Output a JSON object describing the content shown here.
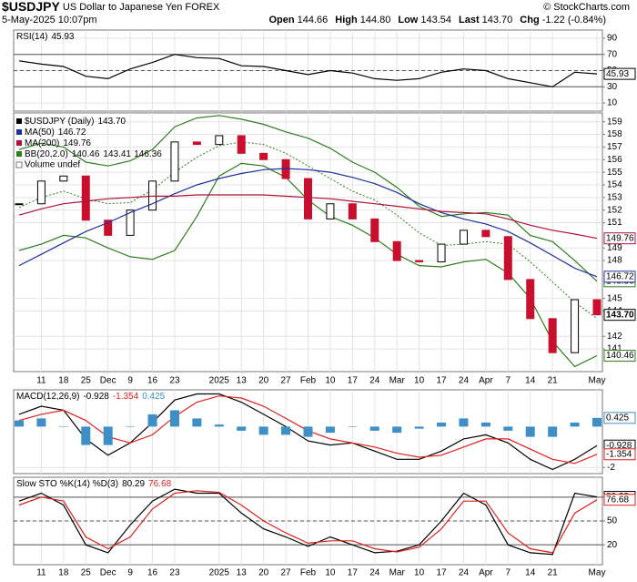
{
  "header": {
    "symbol": "$USDJPY",
    "name": "US Dollar to Japanese Yen",
    "exchange": "FOREX",
    "date": "5-May-2025 10:07pm",
    "quote": [
      {
        "label": "Open",
        "value": "144.66"
      },
      {
        "label": "High",
        "value": "144.80"
      },
      {
        "label": "Low",
        "value": "143.54"
      },
      {
        "label": "Last",
        "value": "143.70"
      },
      {
        "label": "Chg",
        "value": "-1.22 (-0.84%)"
      }
    ],
    "credit": "© StockCharts.com"
  },
  "chart_data": [
    {
      "type": "line",
      "label": "RSI(14)",
      "ylim": [
        0,
        100
      ],
      "yticks": [
        10,
        30,
        50,
        70,
        90
      ],
      "reference_lines": [
        70,
        50,
        30
      ],
      "series": [
        {
          "color": "#000000",
          "legend_value": 45.93,
          "values": [
            62,
            58,
            55,
            43,
            40,
            52,
            60,
            70,
            66,
            65,
            56,
            55,
            50,
            45,
            50,
            47,
            40,
            38,
            40,
            48,
            52,
            50,
            40,
            35,
            30,
            48,
            45.93
          ]
        }
      ]
    },
    {
      "type": "candlestick",
      "ylim": [
        139.2,
        159.7
      ],
      "yticks": [
        141,
        142,
        144,
        145,
        148,
        149,
        151,
        152,
        153,
        154,
        155,
        156,
        157,
        158,
        159
      ],
      "categories": [
        null,
        "11",
        "18",
        "25",
        "Dec",
        "9",
        "16",
        "23",
        null,
        "2025",
        "13",
        "20",
        "27",
        "Feb",
        "10",
        "17",
        "24",
        "Mar",
        "10",
        "17",
        "24",
        "Apr",
        "7",
        "14",
        "21",
        null,
        "May"
      ],
      "series": [
        {
          "name": "$USDJPY (Daily)",
          "legend_value": {
            "value": 143.7,
            "label": "143.70"
          },
          "color": "#000000",
          "down_color": "#c8102e",
          "values": [
            152.5,
            154.3,
            154.7,
            151.2,
            150.0,
            152.0,
            154.3,
            157.4,
            157.2,
            157.9,
            156.5,
            156.0,
            154.5,
            151.3,
            152.5,
            151.3,
            149.5,
            148.0,
            147.9,
            149.3,
            150.4,
            149.9,
            146.5,
            143.4,
            140.7,
            144.9,
            143.7
          ]
        },
        {
          "type": "line",
          "name": "MA(50)",
          "legend_value": 146.72,
          "color": "#1f2f9e",
          "values": [
            147.6,
            148.5,
            149.4,
            150.3,
            151.0,
            151.8,
            152.5,
            153.3,
            154.0,
            154.5,
            154.9,
            155.2,
            155.3,
            155.2,
            155.0,
            154.6,
            154.1,
            153.4,
            152.5,
            151.8,
            151.3,
            150.9,
            150.3,
            149.4,
            148.4,
            147.4,
            146.72
          ]
        },
        {
          "type": "line",
          "name": "MA(200)",
          "legend_value": 149.76,
          "color": "#b0103a",
          "values": [
            151.6,
            152.1,
            152.5,
            152.7,
            152.9,
            153.0,
            153.1,
            153.1,
            153.2,
            153.2,
            153.2,
            153.2,
            153.1,
            153.0,
            152.9,
            152.7,
            152.5,
            152.3,
            152.1,
            151.9,
            151.8,
            151.7,
            151.3,
            150.8,
            150.4,
            150.1,
            149.76
          ]
        }
      ],
      "bollinger": {
        "name": "BB(20,2.0)",
        "color": "#2e7d1e",
        "legend_values": [
          140.46,
          143.41,
          146.36
        ],
        "lower": [
          148.8,
          149.3,
          150.0,
          149.8,
          149.0,
          148.3,
          148.1,
          148.8,
          151.5,
          154.7,
          155.7,
          155.5,
          154.6,
          152.8,
          151.5,
          150.8,
          149.8,
          148.5,
          147.6,
          147.5,
          147.9,
          148.1,
          147.0,
          145.0,
          141.6,
          139.6,
          140.46
        ],
        "middle": [
          152.2,
          153.0,
          153.5,
          152.9,
          152.5,
          152.6,
          153.6,
          155.0,
          156.2,
          157.1,
          157.4,
          157.2,
          156.5,
          155.5,
          154.5,
          153.5,
          152.8,
          151.6,
          150.2,
          149.2,
          149.3,
          149.5,
          149.3,
          147.9,
          146.3,
          144.7,
          143.41
        ],
        "upper": [
          156.8,
          157.3,
          157.0,
          155.8,
          155.5,
          155.9,
          156.8,
          158.6,
          159.3,
          159.5,
          159.2,
          158.8,
          158.2,
          157.7,
          156.9,
          155.8,
          155.0,
          153.8,
          152.3,
          151.5,
          151.7,
          151.8,
          151.6,
          150.0,
          149.5,
          148.0,
          146.36
        ]
      },
      "notes": [
        "Volume undef"
      ]
    },
    {
      "type": "line",
      "label": "MACD(12,26,9)",
      "ylim": [
        -2.3,
        1.8
      ],
      "yticks": [
        -2
      ],
      "series": [
        {
          "color": "#000000",
          "legend_value": -0.928,
          "values": [
            0.6,
            1.0,
            0.8,
            -0.6,
            -1.4,
            -0.8,
            0.2,
            1.3,
            1.6,
            1.6,
            1.2,
            0.6,
            0.0,
            -0.7,
            -0.9,
            -0.8,
            -1.2,
            -1.6,
            -1.6,
            -1.2,
            -0.6,
            -0.4,
            -0.8,
            -1.6,
            -2.1,
            -1.6,
            -0.928
          ]
        },
        {
          "color": "#e0201b",
          "legend_value": -1.354,
          "values": [
            0.3,
            0.6,
            0.8,
            0.3,
            -0.5,
            -0.8,
            -0.4,
            0.5,
            1.2,
            1.5,
            1.4,
            1.0,
            0.4,
            -0.2,
            -0.6,
            -0.8,
            -1.0,
            -1.3,
            -1.5,
            -1.4,
            -1.0,
            -0.6,
            -0.6,
            -1.1,
            -1.6,
            -1.8,
            -1.354
          ]
        },
        {
          "type": "bar",
          "color": "#3d8fc6",
          "legend_value": 0.425,
          "values": [
            0.3,
            0.4,
            0.0,
            -0.9,
            -0.9,
            0.0,
            0.6,
            0.8,
            0.4,
            0.1,
            -0.2,
            -0.4,
            -0.4,
            -0.5,
            -0.3,
            0.0,
            -0.2,
            -0.3,
            -0.1,
            0.2,
            0.4,
            0.2,
            -0.2,
            -0.5,
            -0.5,
            0.2,
            0.425
          ]
        }
      ]
    },
    {
      "type": "line",
      "label": "Slow STO %K(14) %D(3)",
      "ylim": [
        -5,
        105
      ],
      "yticks": [
        20,
        50,
        80
      ],
      "reference_lines": [
        80,
        50,
        20
      ],
      "series": [
        {
          "color": "#000000",
          "legend_value": 80.29,
          "values": [
            75,
            85,
            70,
            20,
            10,
            45,
            75,
            90,
            85,
            85,
            60,
            40,
            30,
            18,
            30,
            20,
            10,
            12,
            20,
            50,
            85,
            70,
            20,
            10,
            8,
            85,
            80.29
          ]
        },
        {
          "color": "#e0201b",
          "legend_value": 76.68,
          "values": [
            70,
            80,
            75,
            30,
            15,
            30,
            65,
            85,
            88,
            86,
            70,
            50,
            35,
            22,
            25,
            25,
            15,
            11,
            17,
            40,
            75,
            75,
            35,
            15,
            10,
            60,
            76.68
          ]
        }
      ]
    }
  ]
}
